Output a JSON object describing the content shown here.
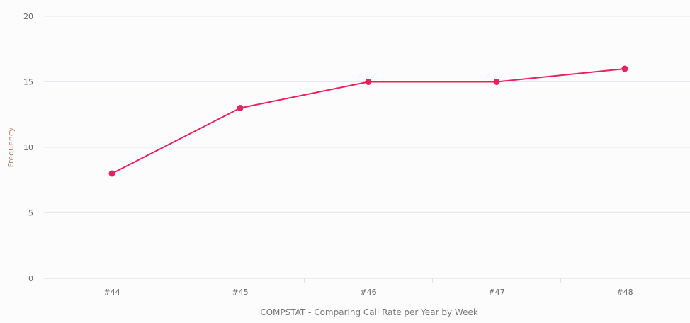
{
  "chart_data": {
    "type": "line",
    "categories": [
      "#44",
      "#45",
      "#46",
      "#47",
      "#48"
    ],
    "series": [
      {
        "values": [
          8,
          13,
          15,
          15,
          16
        ],
        "color": "#e8205e"
      }
    ],
    "xlabel": "COMPSTAT - Comparing Call Rate per Year by Week",
    "ylabel": "Frequency",
    "ylim": [
      0,
      20
    ],
    "yticks": [
      0,
      5,
      10,
      15,
      20
    ],
    "grid": true,
    "legend": "none"
  }
}
